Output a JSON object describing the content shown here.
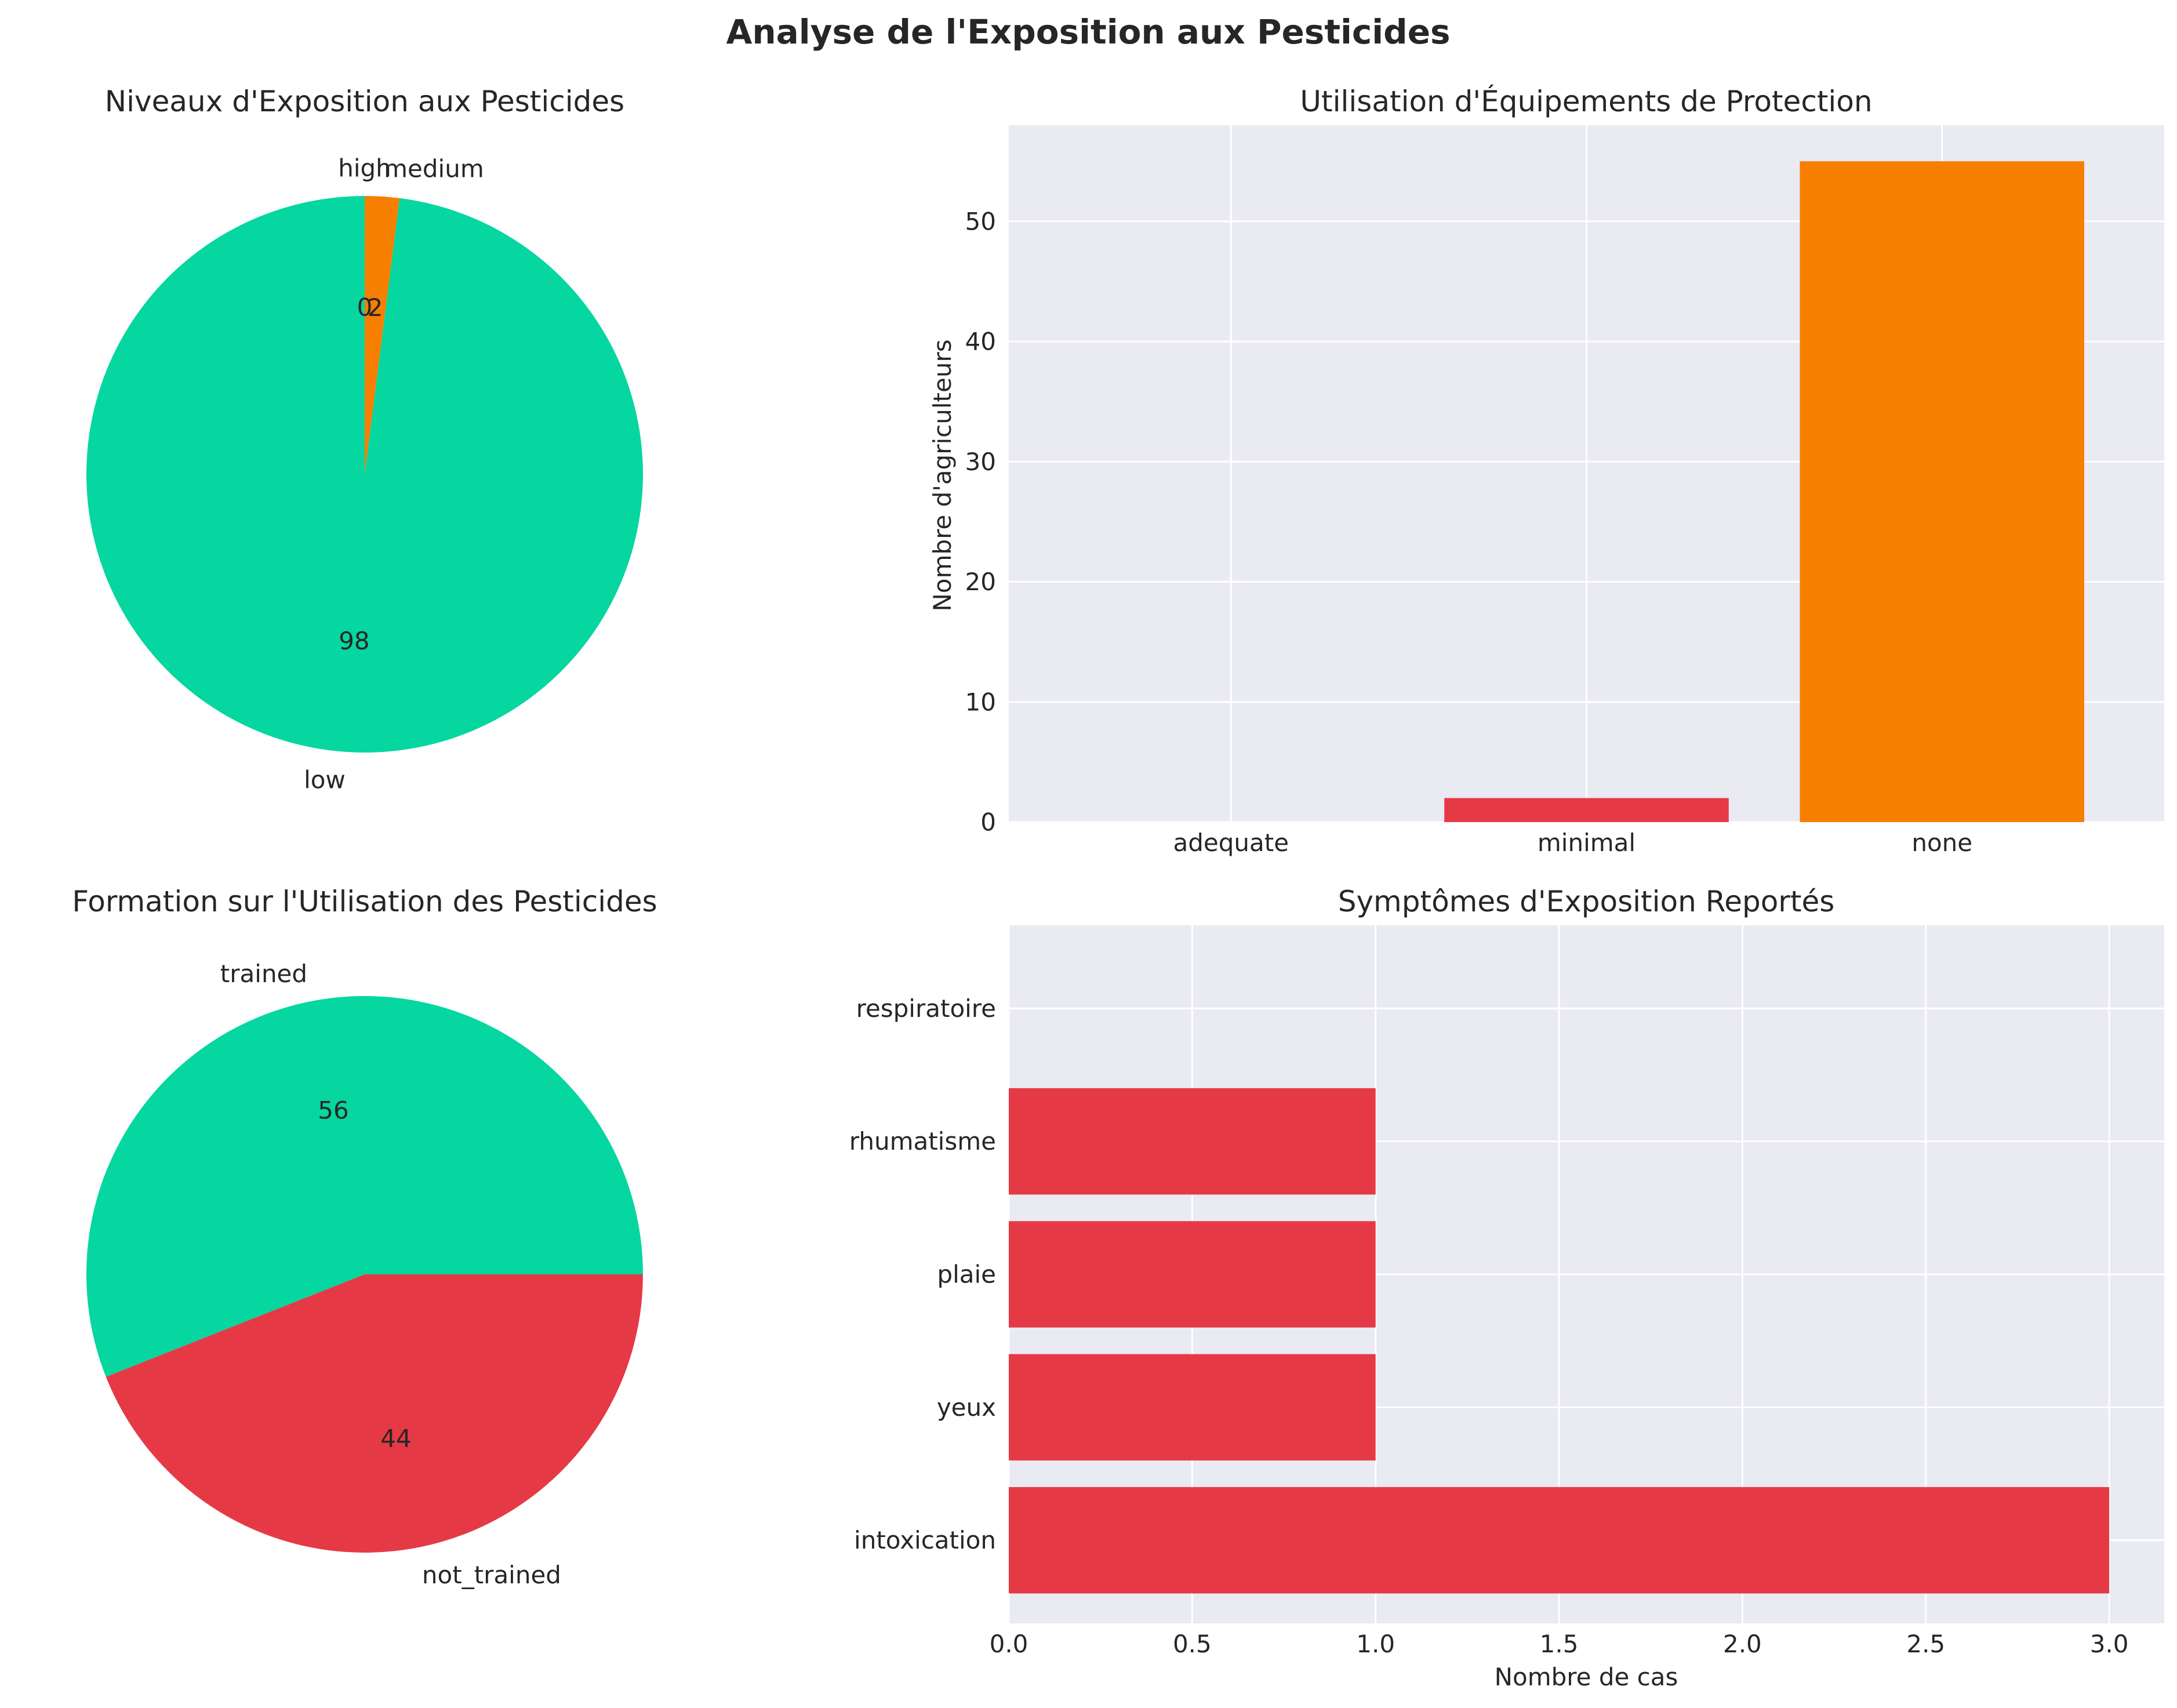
{
  "figure_title": "Analyse de l'Exposition aux Pesticides",
  "colors": {
    "green": "#06d6a0",
    "orange": "#f77f00",
    "red": "#e63946",
    "panel_bg": "#eaeaf2",
    "grid": "#ffffff"
  },
  "chart_data": [
    {
      "type": "pie",
      "title": "Niveaux d'Exposition aux Pesticides",
      "labels": [
        "low",
        "medium",
        "high"
      ],
      "values": [
        98,
        2,
        0
      ],
      "value_labels": [
        "98",
        "2",
        "0"
      ],
      "colors": [
        "#06d6a0",
        "#f77f00",
        "#e63946"
      ],
      "start_angle": 90
    },
    {
      "type": "bar",
      "title": "Utilisation d'Équipements de Protection",
      "categories": [
        "adequate",
        "minimal",
        "none"
      ],
      "values": [
        0,
        2,
        55
      ],
      "colors": [
        "#06d6a0",
        "#e63946",
        "#f77f00"
      ],
      "xlabel": "",
      "ylabel": "Nombre d'agriculteurs",
      "ylim": [
        0,
        58
      ],
      "yticks": [
        0,
        10,
        20,
        30,
        40,
        50
      ],
      "grid": true
    },
    {
      "type": "pie",
      "title": "Formation sur l'Utilisation des Pesticides",
      "labels": [
        "trained",
        "not_trained"
      ],
      "values": [
        56,
        44
      ],
      "value_labels": [
        "56",
        "44"
      ],
      "colors": [
        "#06d6a0",
        "#e63946"
      ],
      "start_angle": 0
    },
    {
      "type": "bar",
      "orientation": "horizontal",
      "title": "Symptômes d'Exposition Reportés",
      "categories": [
        "intoxication",
        "yeux",
        "plaie",
        "rhumatisme",
        "respiratoire"
      ],
      "values": [
        3,
        1,
        1,
        1,
        0
      ],
      "color": "#e63946",
      "xlabel": "Nombre de cas",
      "ylabel": "",
      "xlim": [
        0,
        3.15
      ],
      "xticks": [
        "0.0",
        "0.5",
        "1.0",
        "1.5",
        "2.0",
        "2.5",
        "3.0"
      ],
      "grid": true
    }
  ]
}
